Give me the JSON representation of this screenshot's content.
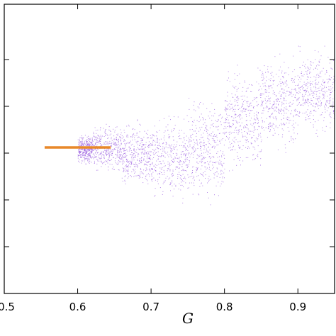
{
  "chart_data": {
    "type": "scatter",
    "title": "",
    "xlabel": "G",
    "ylabel": "",
    "xlim": [
      0.5,
      0.95
    ],
    "x_ticks": [
      "0.5",
      "0.6",
      "0.7",
      "0.8",
      "0.9"
    ],
    "x_tick_values": [
      0.5,
      0.6,
      0.7,
      0.8,
      0.9
    ],
    "y_tick_count": 6,
    "grid": false,
    "legend": "none",
    "colors": {
      "points": "#9b5fe0",
      "highlight": "#e8882a",
      "axes": "#000000"
    },
    "series": [
      {
        "kind": "scatter-cloud",
        "color": "#9b5fe0",
        "bands": [
          {
            "x": [
              0.6,
              0.62
            ],
            "y_center": 0.5,
            "y_spread": 0.06
          },
          {
            "x": [
              0.62,
              0.66
            ],
            "y_center": 0.5,
            "y_spread": 0.1
          },
          {
            "x": [
              0.66,
              0.7
            ],
            "y_center": 0.48,
            "y_spread": 0.14
          },
          {
            "x": [
              0.7,
              0.75
            ],
            "y_center": 0.47,
            "y_spread": 0.18
          },
          {
            "x": [
              0.75,
              0.8
            ],
            "y_center": 0.5,
            "y_spread": 0.22
          },
          {
            "x": [
              0.8,
              0.85
            ],
            "y_center": 0.6,
            "y_spread": 0.22
          },
          {
            "x": [
              0.85,
              0.9
            ],
            "y_center": 0.66,
            "y_spread": 0.2
          },
          {
            "x": [
              0.9,
              0.95
            ],
            "y_center": 0.7,
            "y_spread": 0.18
          }
        ]
      },
      {
        "kind": "segment",
        "color": "#e8882a",
        "x": [
          0.555,
          0.645
        ],
        "y": [
          0.505,
          0.505
        ]
      }
    ]
  }
}
